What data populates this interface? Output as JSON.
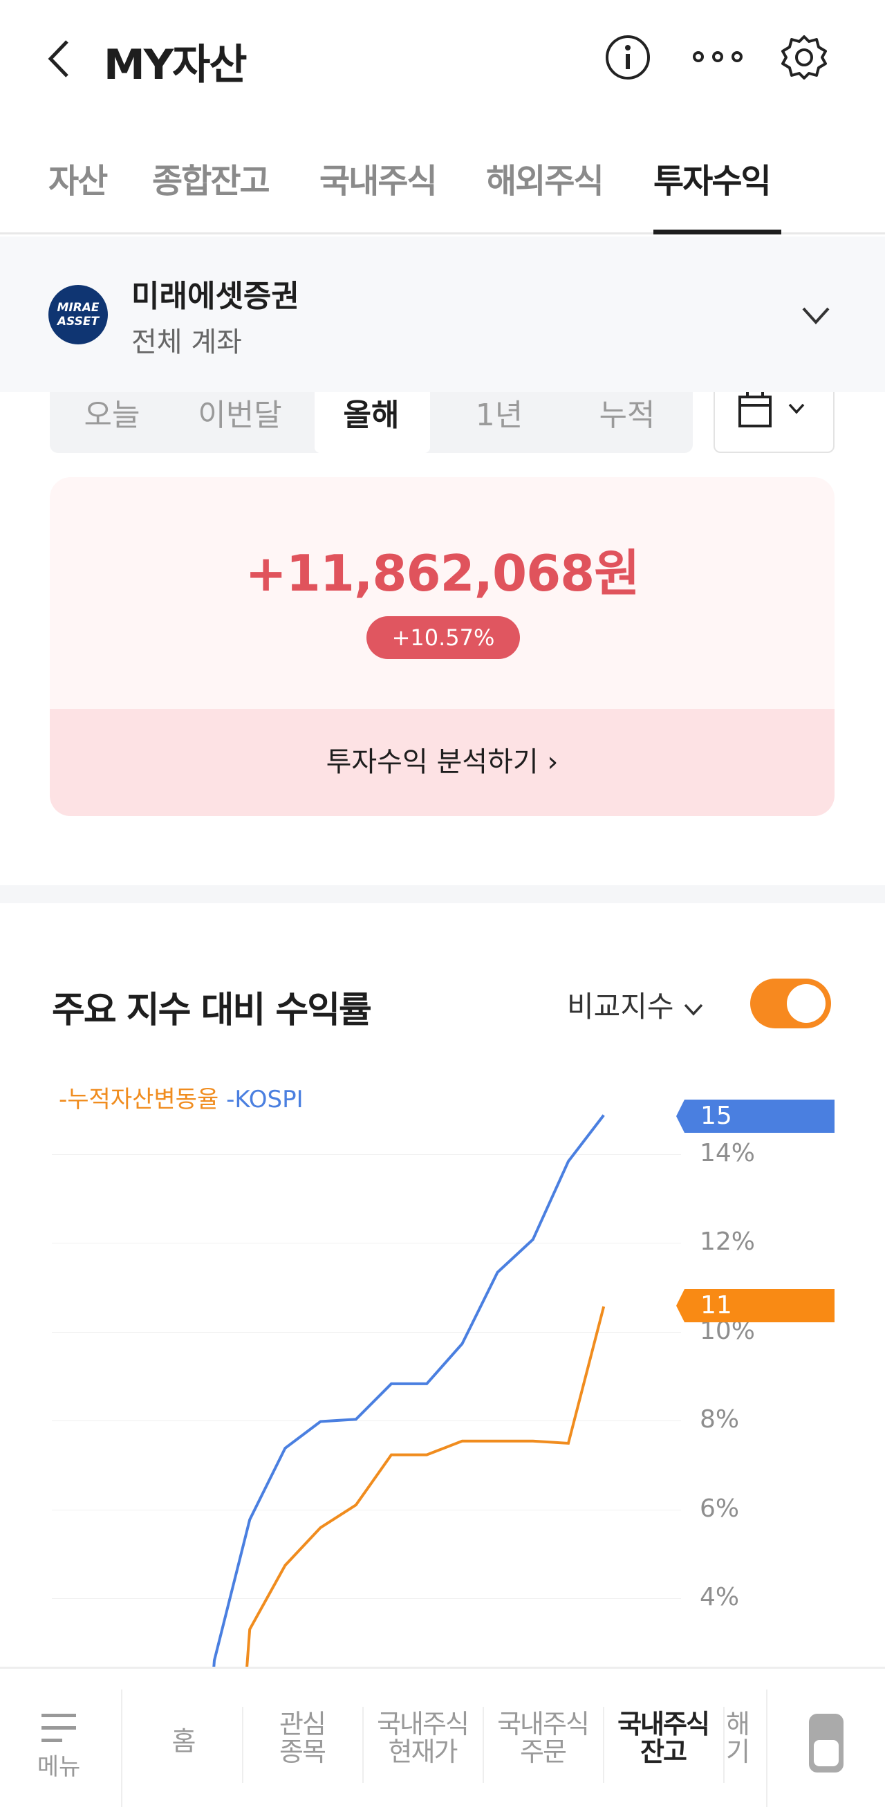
{
  "header": {
    "title": "MY자산",
    "back_icon": "chevron-left-icon",
    "icons": [
      "info-icon",
      "more-icon",
      "gear-icon"
    ]
  },
  "tabs": [
    {
      "label": "자산"
    },
    {
      "label": "종합잔고"
    },
    {
      "label": "국내주식"
    },
    {
      "label": "해외주식"
    },
    {
      "label": "투자수익",
      "active": true
    }
  ],
  "account": {
    "logo_text": "MIRAE ASSET",
    "name": "미래에셋증권",
    "sub": "전체 계좌"
  },
  "periods": [
    {
      "label": "오늘"
    },
    {
      "label": "이번달"
    },
    {
      "label": "올해",
      "selected": true
    },
    {
      "label": "1년"
    },
    {
      "label": "누적"
    }
  ],
  "summary": {
    "amount": "+11,862,068원",
    "rate": "+10.57%",
    "link": "투자수익 분석하기 ›",
    "color": "#e0535c"
  },
  "compare": {
    "title": "주요 지수 대비 수익률",
    "index_label": "비교지수",
    "toggle_on": true,
    "toggle_color": "#f7891f"
  },
  "chart_data": {
    "type": "line",
    "yticks": [
      "4%",
      "6%",
      "8%",
      "10%",
      "12%",
      "14%"
    ],
    "grid": true,
    "legend": "top-left",
    "series": [
      {
        "name": "누적자산변동율",
        "color": "#f08c1e",
        "end_label": "11",
        "values": [
          null,
          3.3,
          4.74,
          5.59,
          6.1,
          7.23,
          7.23,
          7.54,
          7.54,
          7.54,
          7.49,
          10.57
        ]
      },
      {
        "name": "KOSPI",
        "color": "#4a7fe0",
        "end_label": "15",
        "values": [
          2.6,
          5.77,
          7.38,
          7.98,
          8.03,
          8.83,
          8.83,
          9.73,
          11.34,
          12.08,
          13.84,
          14.88
        ]
      }
    ]
  },
  "bottom_nav": {
    "menu": "메뉴",
    "items": [
      "홈",
      "관심\n종목",
      "국내주식\n현재가",
      "국내주식\n주문",
      "국내주식\n잔고",
      "해\n기"
    ],
    "active": 4
  }
}
